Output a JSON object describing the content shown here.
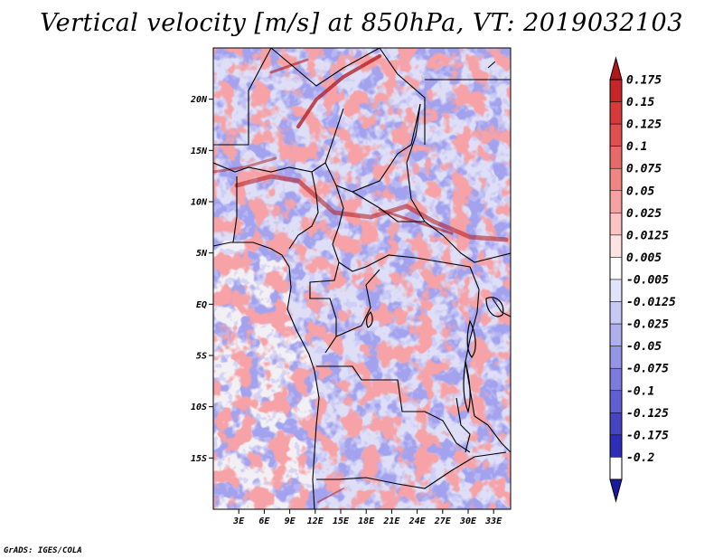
{
  "title": "Vertical velocity [m/s] at 850hPa, VT: 2019032103",
  "footer": "GrADS: IGES/COLA",
  "map": {
    "variable": "Vertical velocity",
    "units": "m/s",
    "level": "850hPa",
    "valid_time": "2019032103",
    "lon_range": [
      0,
      35
    ],
    "lat_range": [
      -20,
      25
    ],
    "lat_ticks": [
      {
        "value": 20,
        "label": "20N"
      },
      {
        "value": 15,
        "label": "15N"
      },
      {
        "value": 10,
        "label": "10N"
      },
      {
        "value": 5,
        "label": "5N"
      },
      {
        "value": 0,
        "label": "EQ"
      },
      {
        "value": -5,
        "label": "5S"
      },
      {
        "value": -10,
        "label": "10S"
      },
      {
        "value": -15,
        "label": "15S"
      }
    ],
    "lon_ticks": [
      {
        "value": 3,
        "label": "3E"
      },
      {
        "value": 6,
        "label": "6E"
      },
      {
        "value": 9,
        "label": "9E"
      },
      {
        "value": 12,
        "label": "12E"
      },
      {
        "value": 15,
        "label": "15E"
      },
      {
        "value": 18,
        "label": "18E"
      },
      {
        "value": 21,
        "label": "21E"
      },
      {
        "value": 24,
        "label": "24E"
      },
      {
        "value": 27,
        "label": "27E"
      },
      {
        "value": 30,
        "label": "30E"
      },
      {
        "value": 33,
        "label": "33E"
      }
    ]
  },
  "colorbar": {
    "labels": [
      "0.175",
      "0.15",
      "0.125",
      "0.1",
      "0.075",
      "0.05",
      "0.025",
      "0.0125",
      "0.005",
      "-0.005",
      "-0.0125",
      "-0.025",
      "-0.05",
      "-0.075",
      "-0.1",
      "-0.125",
      "-0.175",
      "-0.2"
    ],
    "colors": [
      "#b2181b",
      "#c62628",
      "#d63a3a",
      "#e05050",
      "#e86a68",
      "#ef8683",
      "#f4a3a0",
      "#f9c4c2",
      "#fde3e2",
      "#ffffff",
      "#e2e2fa",
      "#c8c8f4",
      "#afafee",
      "#9595e6",
      "#7b7bdd",
      "#6060d2",
      "#4545c4",
      "#2d2db5",
      "#1a1a9e"
    ],
    "top_arrow_color": "#b2181b",
    "bottom_arrow_color": "#1a1a9e"
  },
  "colors": {
    "ocean_base": "#f3f0f4",
    "land_base": "#dcdcf6",
    "border": "#000000"
  }
}
